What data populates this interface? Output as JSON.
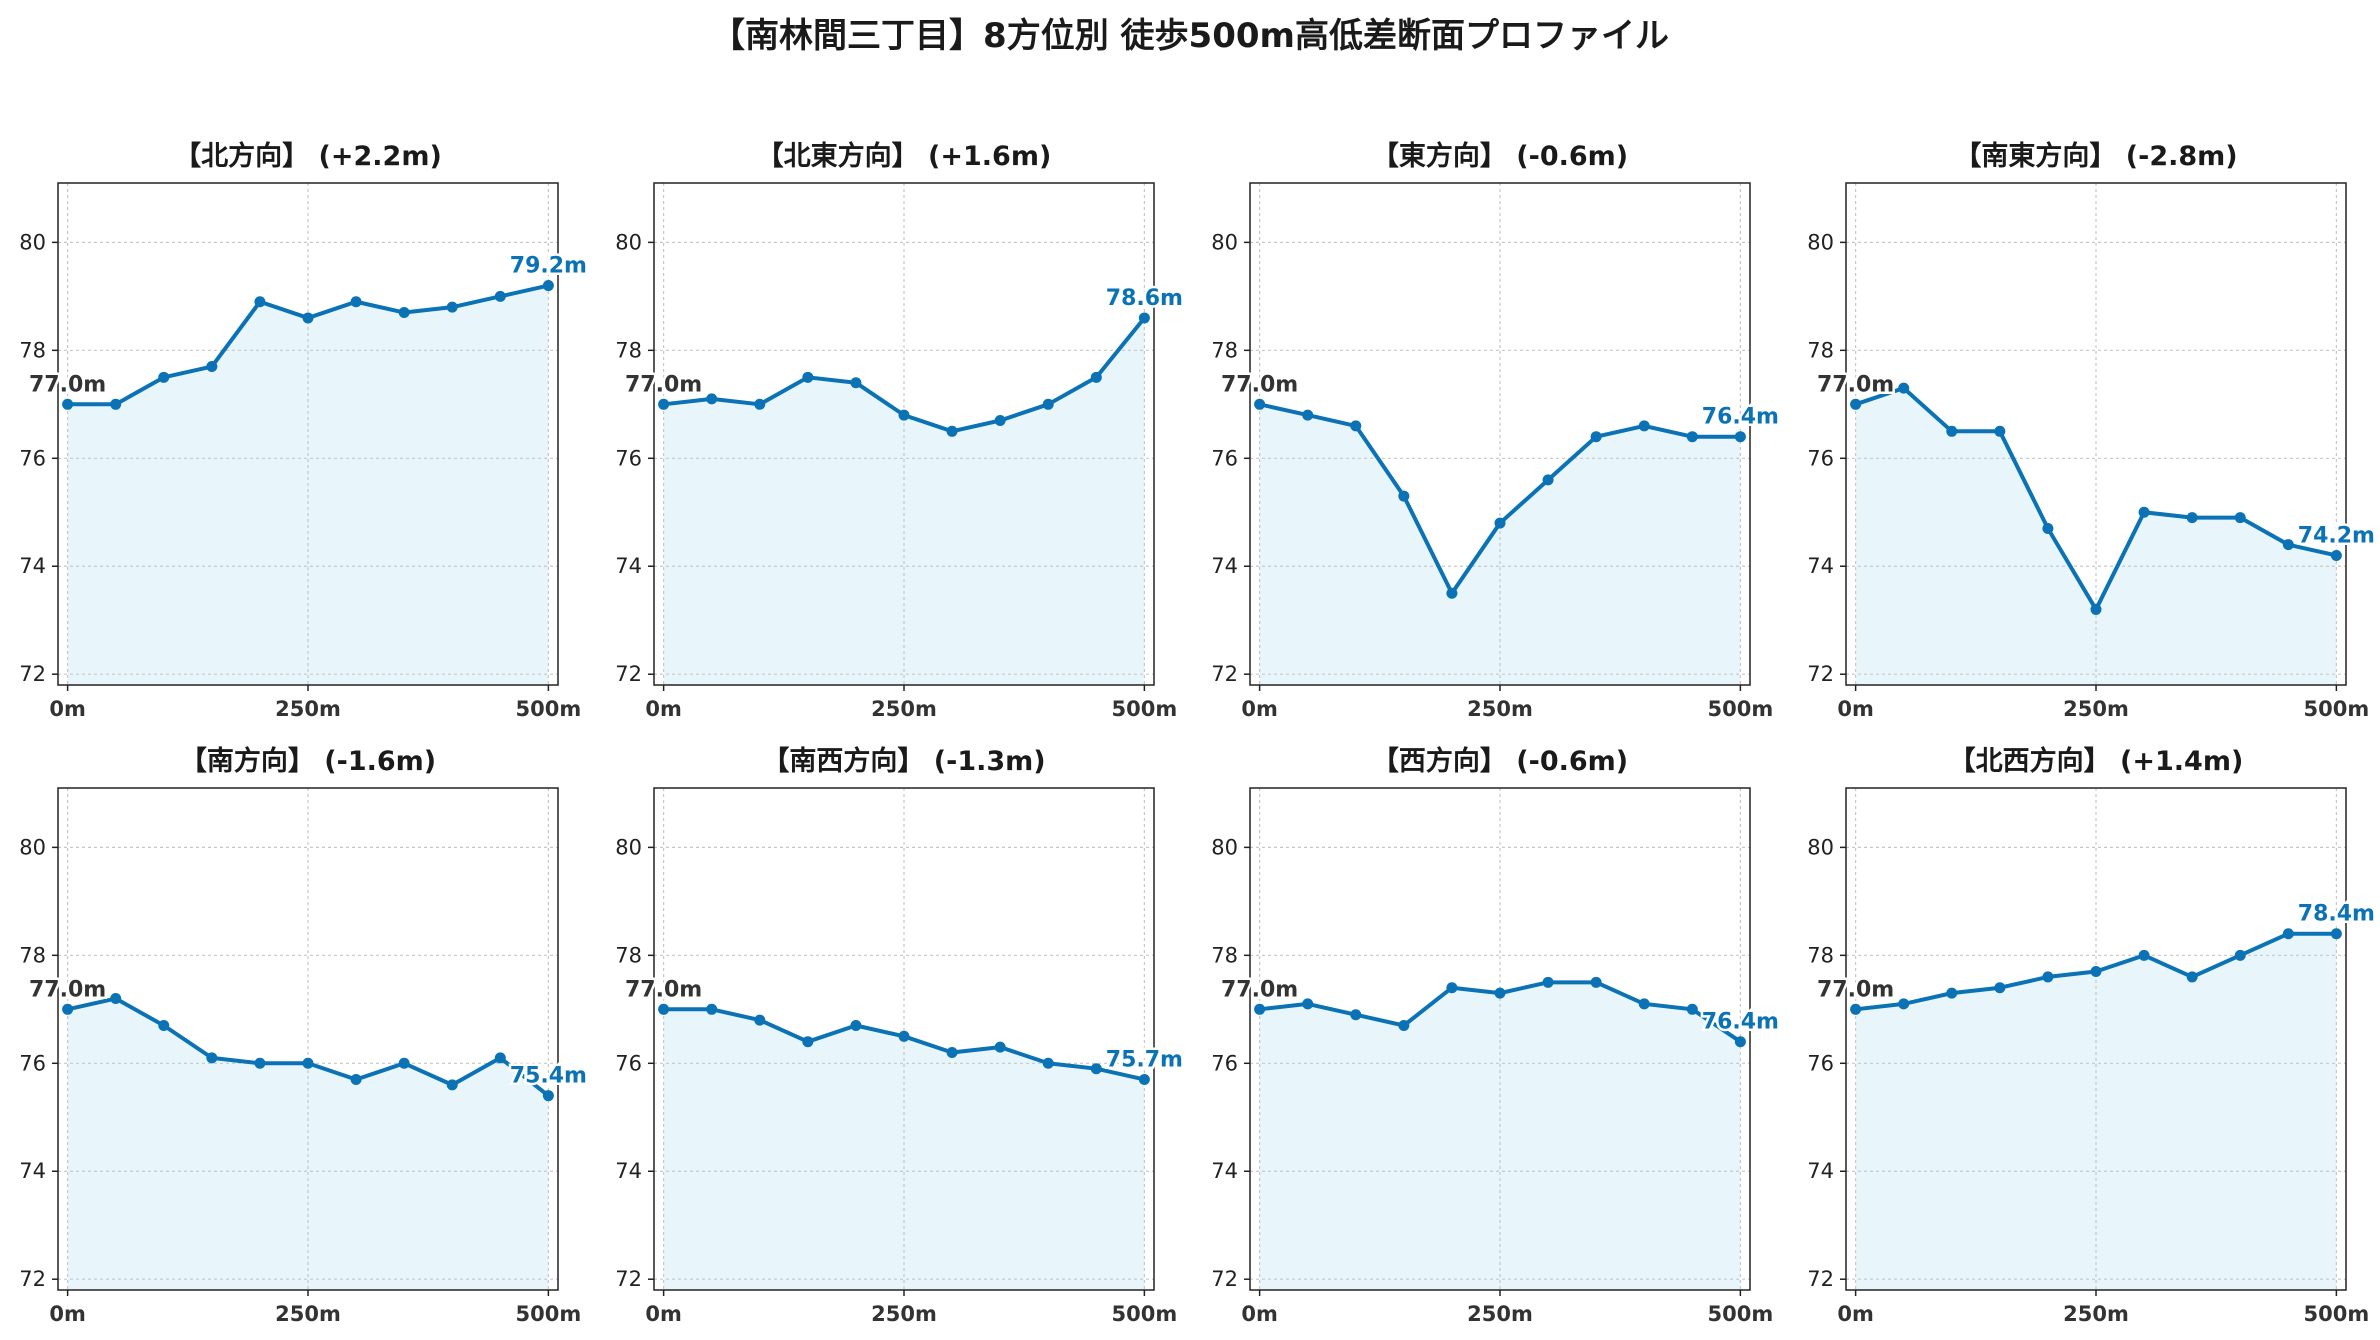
{
  "title": "【南林間三丁目】8方位別 徒歩500m高低差断面プロファイル",
  "colors": {
    "line": "#0a72b5",
    "fill": "#e8f6fc",
    "grid": "#c8c8c8",
    "start_label": "#333333",
    "end_label": "#0a72b5"
  },
  "chart_data": [
    {
      "type": "area",
      "title": "【北方向】 (+2.2m)",
      "x": [
        0,
        50,
        100,
        150,
        200,
        250,
        300,
        350,
        400,
        450,
        500
      ],
      "y": [
        77.0,
        77.0,
        77.5,
        77.7,
        78.9,
        78.6,
        78.9,
        78.7,
        78.8,
        79.0,
        79.2
      ],
      "start_label": "77.0m",
      "end_label": "79.2m",
      "xticks": [
        "0m",
        "250m",
        "500m"
      ],
      "yticks": [
        72,
        74,
        76,
        78,
        80
      ],
      "ylim": [
        71.8,
        81.1
      ],
      "xlim": [
        -10,
        510
      ],
      "grid": true
    },
    {
      "type": "area",
      "title": "【北東方向】 (+1.6m)",
      "x": [
        0,
        50,
        100,
        150,
        200,
        250,
        300,
        350,
        400,
        450,
        500
      ],
      "y": [
        77.0,
        77.1,
        77.0,
        77.5,
        77.4,
        76.8,
        76.5,
        76.7,
        77.0,
        77.5,
        78.6
      ],
      "start_label": "77.0m",
      "end_label": "78.6m",
      "xticks": [
        "0m",
        "250m",
        "500m"
      ],
      "yticks": [
        72,
        74,
        76,
        78,
        80
      ],
      "ylim": [
        71.8,
        81.1
      ],
      "xlim": [
        -10,
        510
      ],
      "grid": true
    },
    {
      "type": "area",
      "title": "【東方向】 (-0.6m)",
      "x": [
        0,
        50,
        100,
        150,
        200,
        250,
        300,
        350,
        400,
        450,
        500
      ],
      "y": [
        77.0,
        76.8,
        76.6,
        75.3,
        73.5,
        74.8,
        75.6,
        76.4,
        76.6,
        76.4,
        76.4
      ],
      "start_label": "77.0m",
      "end_label": "76.4m",
      "xticks": [
        "0m",
        "250m",
        "500m"
      ],
      "yticks": [
        72,
        74,
        76,
        78,
        80
      ],
      "ylim": [
        71.8,
        81.1
      ],
      "xlim": [
        -10,
        510
      ],
      "grid": true
    },
    {
      "type": "area",
      "title": "【南東方向】 (-2.8m)",
      "x": [
        0,
        50,
        100,
        150,
        200,
        250,
        300,
        350,
        400,
        450,
        500
      ],
      "y": [
        77.0,
        77.3,
        76.5,
        76.5,
        74.7,
        73.2,
        75.0,
        74.9,
        74.9,
        74.4,
        74.2
      ],
      "start_label": "77.0m",
      "end_label": "74.2m",
      "xticks": [
        "0m",
        "250m",
        "500m"
      ],
      "yticks": [
        72,
        74,
        76,
        78,
        80
      ],
      "ylim": [
        71.8,
        81.1
      ],
      "xlim": [
        -10,
        510
      ],
      "grid": true
    },
    {
      "type": "area",
      "title": "【南方向】 (-1.6m)",
      "x": [
        0,
        50,
        100,
        150,
        200,
        250,
        300,
        350,
        400,
        450,
        500
      ],
      "y": [
        77.0,
        77.2,
        76.7,
        76.1,
        76.0,
        76.0,
        75.7,
        76.0,
        75.6,
        76.1,
        75.4
      ],
      "start_label": "77.0m",
      "end_label": "75.4m",
      "xticks": [
        "0m",
        "250m",
        "500m"
      ],
      "yticks": [
        72,
        74,
        76,
        78,
        80
      ],
      "ylim": [
        71.8,
        81.1
      ],
      "xlim": [
        -10,
        510
      ],
      "grid": true
    },
    {
      "type": "area",
      "title": "【南西方向】 (-1.3m)",
      "x": [
        0,
        50,
        100,
        150,
        200,
        250,
        300,
        350,
        400,
        450,
        500
      ],
      "y": [
        77.0,
        77.0,
        76.8,
        76.4,
        76.7,
        76.5,
        76.2,
        76.3,
        76.0,
        75.9,
        75.7
      ],
      "start_label": "77.0m",
      "end_label": "75.7m",
      "xticks": [
        "0m",
        "250m",
        "500m"
      ],
      "yticks": [
        72,
        74,
        76,
        78,
        80
      ],
      "ylim": [
        71.8,
        81.1
      ],
      "xlim": [
        -10,
        510
      ],
      "grid": true
    },
    {
      "type": "area",
      "title": "【西方向】 (-0.6m)",
      "x": [
        0,
        50,
        100,
        150,
        200,
        250,
        300,
        350,
        400,
        450,
        500
      ],
      "y": [
        77.0,
        77.1,
        76.9,
        76.7,
        77.4,
        77.3,
        77.5,
        77.5,
        77.1,
        77.0,
        76.4
      ],
      "start_label": "77.0m",
      "end_label": "76.4m",
      "xticks": [
        "0m",
        "250m",
        "500m"
      ],
      "yticks": [
        72,
        74,
        76,
        78,
        80
      ],
      "ylim": [
        71.8,
        81.1
      ],
      "xlim": [
        -10,
        510
      ],
      "grid": true
    },
    {
      "type": "area",
      "title": "【北西方向】 (+1.4m)",
      "x": [
        0,
        50,
        100,
        150,
        200,
        250,
        300,
        350,
        400,
        450,
        500
      ],
      "y": [
        77.0,
        77.1,
        77.3,
        77.4,
        77.6,
        77.7,
        78.0,
        77.6,
        78.0,
        78.4,
        78.4
      ],
      "start_label": "77.0m",
      "end_label": "78.4m",
      "xticks": [
        "0m",
        "250m",
        "500m"
      ],
      "yticks": [
        72,
        74,
        76,
        78,
        80
      ],
      "ylim": [
        71.8,
        81.1
      ],
      "xlim": [
        -10,
        510
      ],
      "grid": true
    }
  ]
}
